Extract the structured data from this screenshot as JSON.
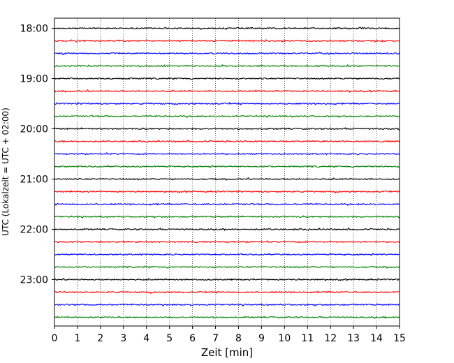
{
  "chart_data": {
    "type": "line",
    "title": "",
    "xlabel": "Zeit  [min]",
    "ylabel": "UTC (Lokalzeit = UTC + 02:00)",
    "xlim": [
      0,
      15
    ],
    "x_ticks": [
      0,
      1,
      2,
      3,
      4,
      5,
      6,
      7,
      8,
      9,
      10,
      11,
      12,
      13,
      14,
      15
    ],
    "y_tick_labels": [
      "18:00",
      "19:00",
      "20:00",
      "21:00",
      "22:00",
      "23:00"
    ],
    "grid": "vertical dotted lines at each minute",
    "trace_colors": [
      "#000000",
      "#ff0000",
      "#0000ff",
      "#008000"
    ],
    "trace_start_times": [
      "18:00",
      "18:15",
      "18:30",
      "18:45",
      "19:00",
      "19:15",
      "19:30",
      "19:45",
      "20:00",
      "20:15",
      "20:30",
      "20:45",
      "21:00",
      "21:15",
      "21:30",
      "21:45",
      "22:00",
      "22:15",
      "22:30",
      "22:45",
      "23:00",
      "23:15",
      "23:30",
      "23:45"
    ],
    "trace_minutes_per_row": 15
  }
}
